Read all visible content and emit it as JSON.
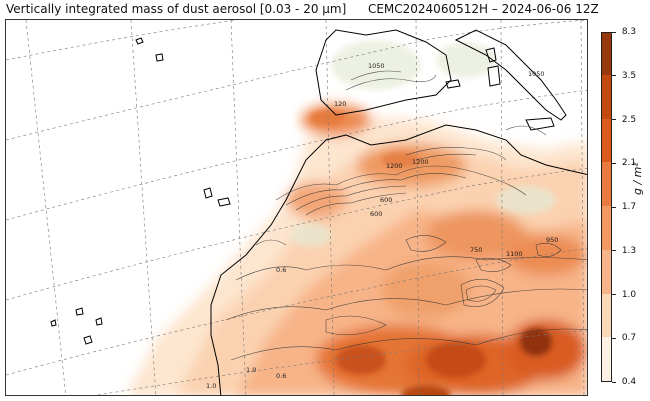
{
  "title": {
    "left": "Vertically integrated mass of dust aerosol [0.03 - 20 μm]",
    "right": "CEMC2024060512H – 2024-06-06 12Z"
  },
  "colorbar": {
    "unit_label": "g / m²",
    "ticks": [
      "0.4",
      "0.7",
      "1.0",
      "1.3",
      "1.7",
      "2.1",
      "2.5",
      "3.5",
      "8.3"
    ],
    "colors": [
      "#fdf0e4",
      "#fbd7b8",
      "#f7b48a",
      "#f29963",
      "#ea7a3f",
      "#db5a1c",
      "#c24a0f",
      "#97390c",
      "#5e2508"
    ]
  },
  "map": {
    "contour_labels": [
      "1050",
      "120",
      "1200",
      "1200",
      "600",
      "600",
      "0.6",
      "750",
      "950",
      "1.0",
      "0.6",
      "1.0",
      "1100",
      "1050"
    ]
  }
}
